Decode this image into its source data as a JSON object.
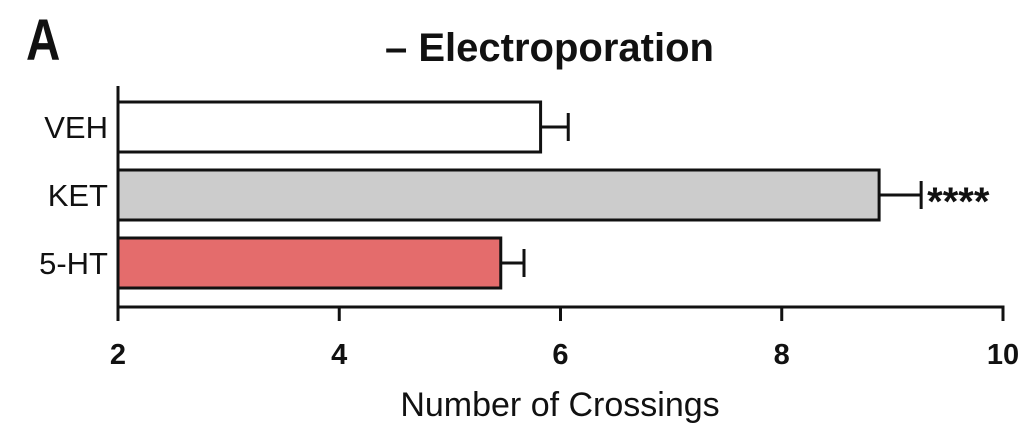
{
  "panel_label": "A",
  "chart_data": {
    "type": "bar",
    "orientation": "horizontal",
    "title": "– Electroporation",
    "xlabel": "Number of Crossings",
    "ylabel": "",
    "xlim": [
      2,
      10
    ],
    "x_ticks": [
      2,
      4,
      6,
      8,
      10
    ],
    "grid": false,
    "categories": [
      "VEH",
      "KET",
      "5-HT"
    ],
    "values": [
      5.82,
      8.88,
      5.46
    ],
    "errors": [
      0.25,
      0.38,
      0.21
    ],
    "colors": [
      "#ffffff",
      "#cccccc",
      "#e46c6c"
    ],
    "annotations": [
      "",
      "****",
      ""
    ]
  }
}
